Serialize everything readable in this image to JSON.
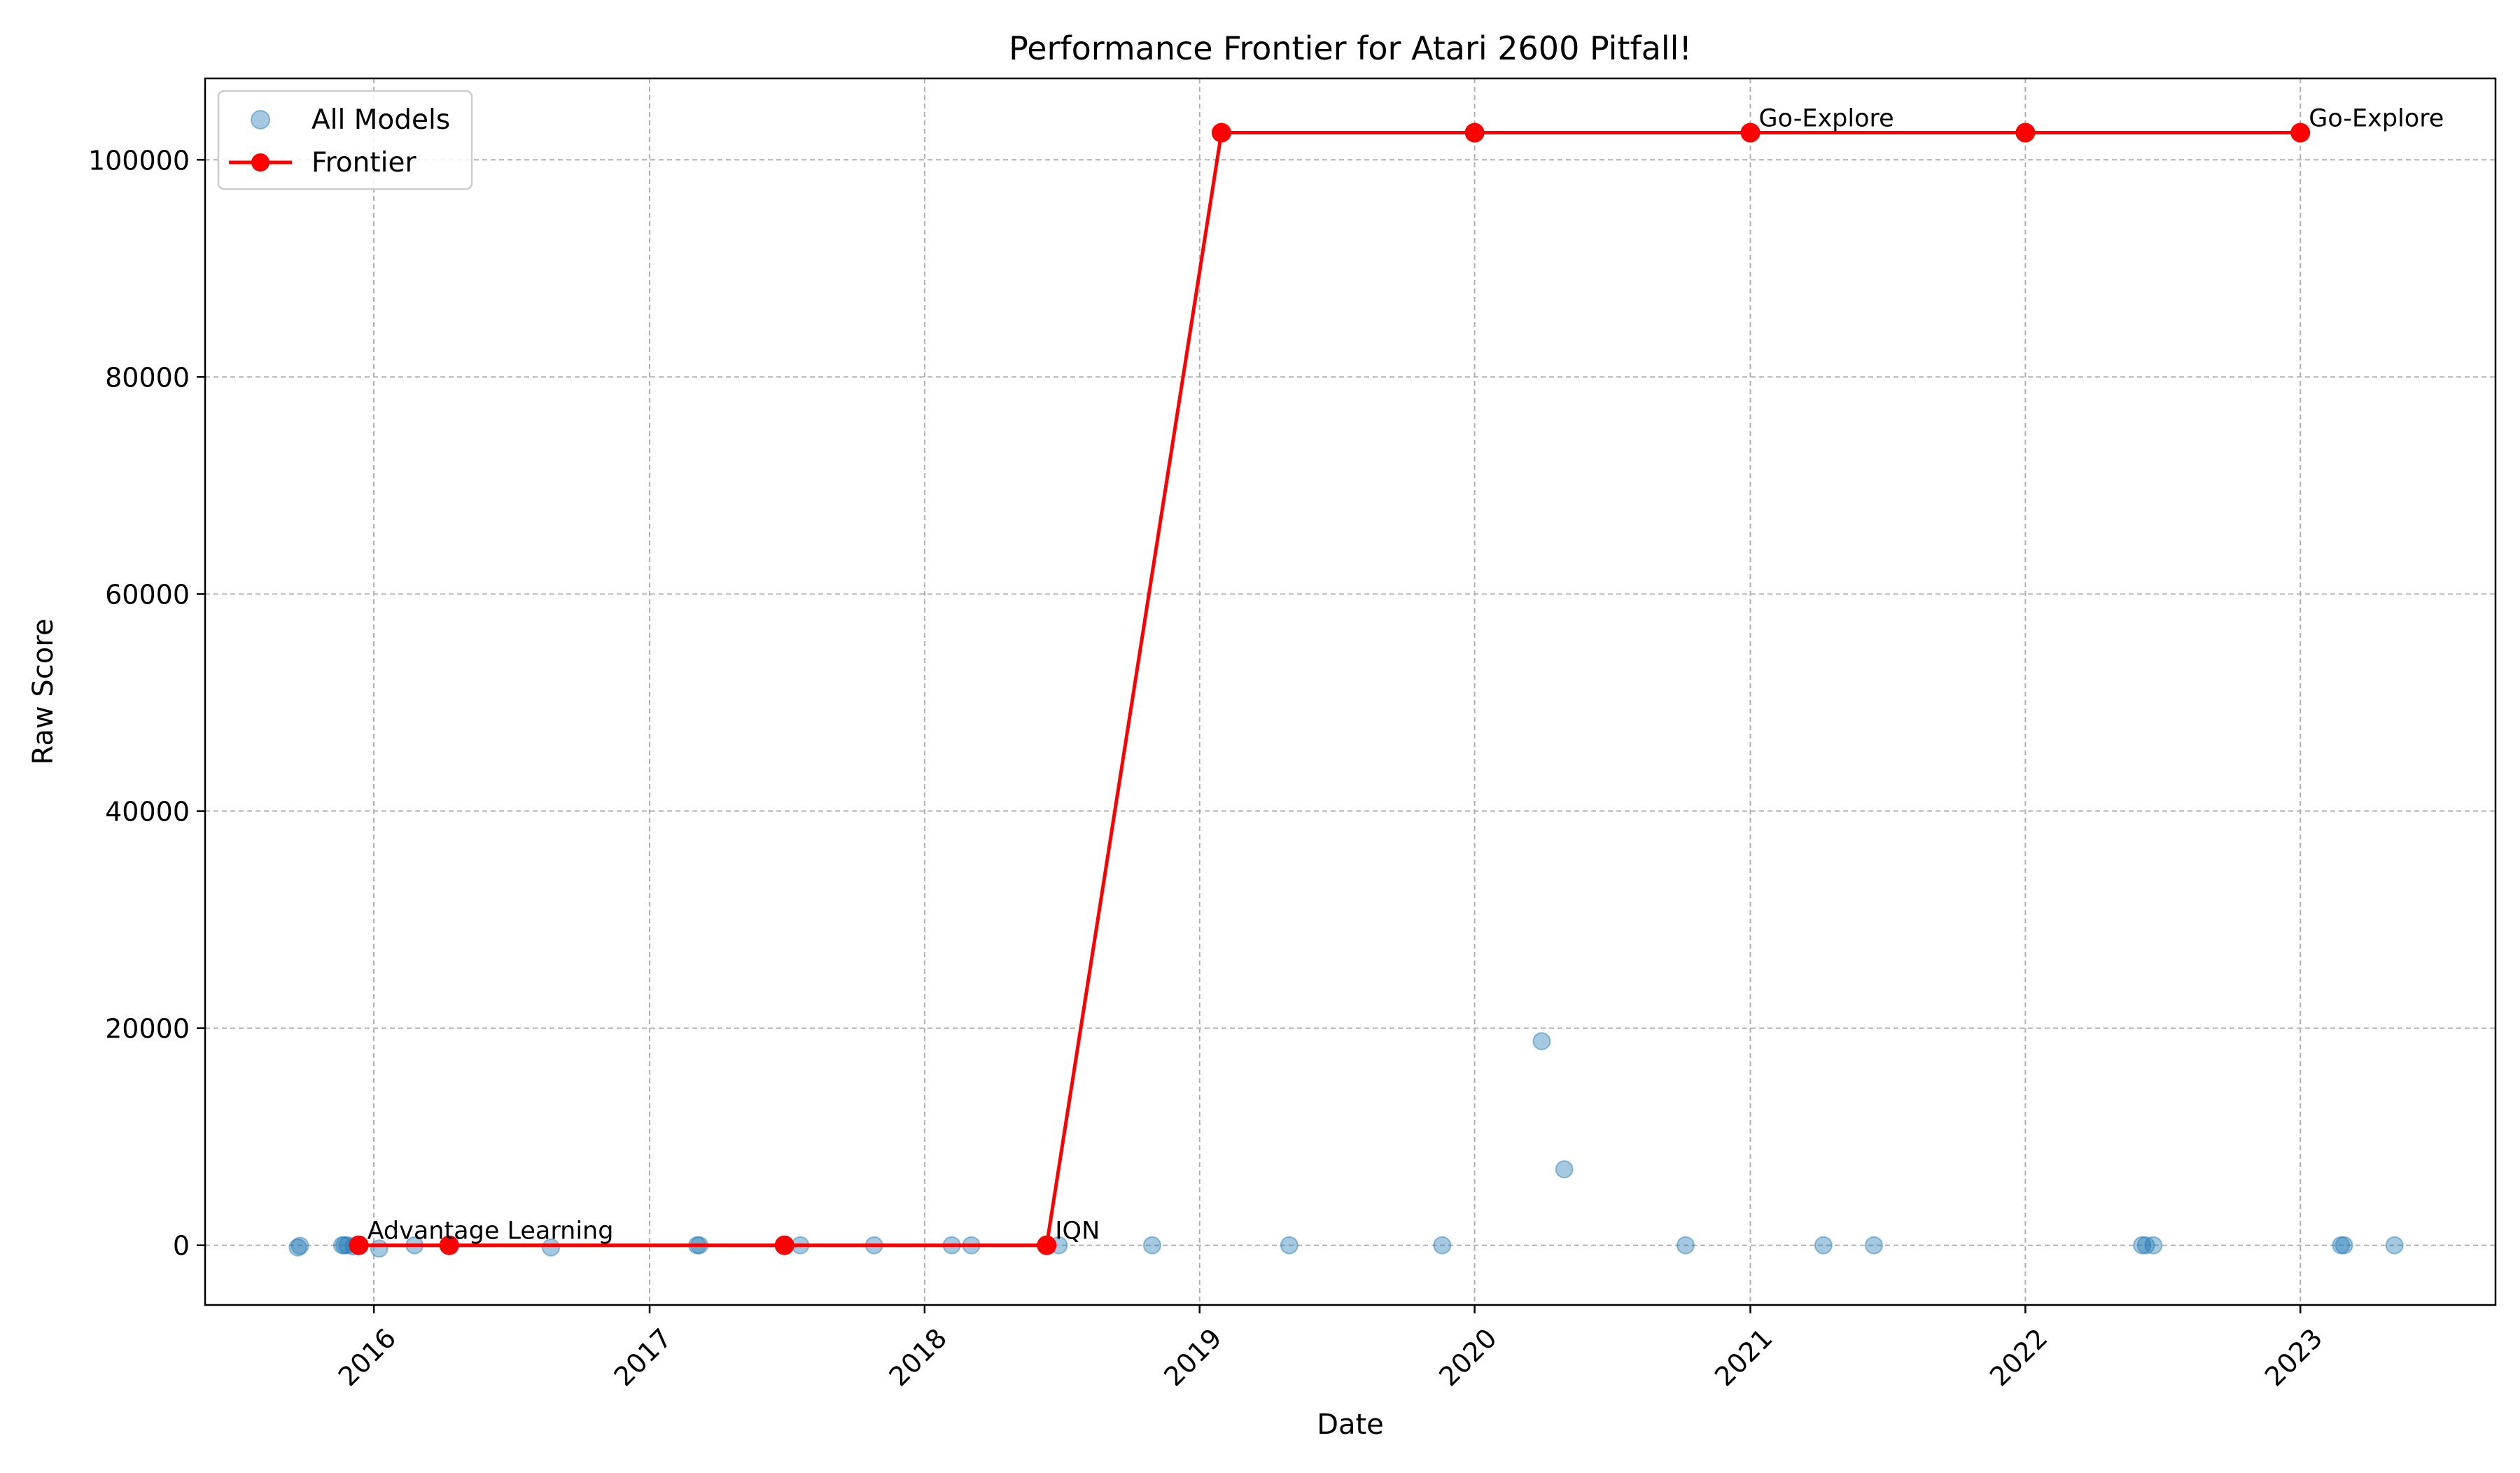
{
  "chart_data": {
    "type": "scatter",
    "title": "Performance Frontier for Atari 2600 Pitfall!",
    "xlabel": "Date",
    "ylabel": "Raw Score",
    "x_axis": "date",
    "xlim": [
      "2015-05-22",
      "2023-09-17"
    ],
    "ylim": [
      -5500,
      107500
    ],
    "x_ticks": [
      "2016",
      "2017",
      "2018",
      "2019",
      "2020",
      "2021",
      "2022",
      "2023"
    ],
    "y_ticks": [
      0,
      20000,
      40000,
      60000,
      80000,
      100000
    ],
    "x_tick_rotation_deg": 45,
    "grid": true,
    "legend_position": "upper-left",
    "legend": [
      "All Models",
      "Frontier"
    ],
    "colors": {
      "all_models": "#1f77b4",
      "frontier": "#ff0000"
    },
    "series": [
      {
        "name": "All Models",
        "type": "scatter",
        "points": [
          [
            "2015-09-22",
            -200
          ],
          [
            "2015-09-25",
            -50
          ],
          [
            "2015-11-20",
            0
          ],
          [
            "2015-11-23",
            0
          ],
          [
            "2015-11-27",
            0
          ],
          [
            "2015-12-05",
            -100
          ],
          [
            "2015-12-12",
            -50
          ],
          [
            "2016-01-08",
            -300
          ],
          [
            "2016-02-24",
            0
          ],
          [
            "2016-04-10",
            0
          ],
          [
            "2016-08-23",
            -200
          ],
          [
            "2017-03-05",
            0
          ],
          [
            "2017-03-08",
            0
          ],
          [
            "2017-06-29",
            0
          ],
          [
            "2017-07-20",
            0
          ],
          [
            "2017-10-26",
            0
          ],
          [
            "2018-02-06",
            0
          ],
          [
            "2018-03-04",
            0
          ],
          [
            "2018-06-12",
            0
          ],
          [
            "2018-06-28",
            0
          ],
          [
            "2018-10-30",
            0
          ],
          [
            "2019-04-30",
            0
          ],
          [
            "2019-11-19",
            0
          ],
          [
            "2020-03-30",
            18800
          ],
          [
            "2020-04-29",
            7000
          ],
          [
            "2020-10-07",
            0
          ],
          [
            "2021-04-08",
            0
          ],
          [
            "2021-06-14",
            0
          ],
          [
            "2022-06-05",
            0
          ],
          [
            "2022-06-10",
            0
          ],
          [
            "2022-06-20",
            0
          ],
          [
            "2023-02-24",
            0
          ],
          [
            "2023-02-28",
            0
          ],
          [
            "2023-05-06",
            0
          ]
        ]
      },
      {
        "name": "Frontier",
        "type": "line",
        "points": [
          [
            "2015-12-12",
            0
          ],
          [
            "2016-04-10",
            0
          ],
          [
            "2017-06-29",
            0
          ],
          [
            "2018-06-12",
            0
          ],
          [
            "2019-01-30",
            102500
          ],
          [
            "2020-01-01",
            102500
          ],
          [
            "2021-01-01",
            102500
          ],
          [
            "2022-01-01",
            102500
          ],
          [
            "2023-01-01",
            102500
          ]
        ]
      }
    ],
    "annotations": [
      {
        "text": "Advantage Learning",
        "x": "2015-12-12",
        "y": 0
      },
      {
        "text": "IQN",
        "x": "2018-06-12",
        "y": 0
      },
      {
        "text": "Go-Explore",
        "x": "2021-01-01",
        "y": 102500
      },
      {
        "text": "Go-Explore",
        "x": "2023-01-01",
        "y": 102500
      }
    ]
  }
}
